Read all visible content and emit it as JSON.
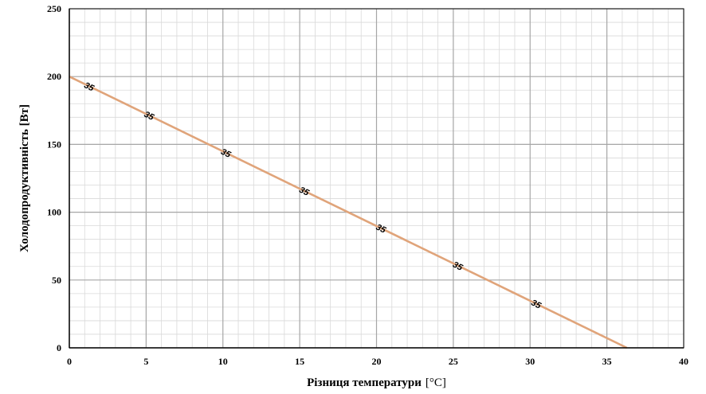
{
  "chart_data": {
    "type": "line",
    "title": "",
    "xlabel": "Різниця температури",
    "xunit": "[°C]",
    "ylabel": "Холодопродуктивність [Вт]",
    "xlim": [
      0,
      40
    ],
    "ylim": [
      0,
      250
    ],
    "x_ticks": [
      0,
      5,
      10,
      15,
      20,
      25,
      30,
      35,
      40
    ],
    "y_ticks": [
      0,
      50,
      100,
      150,
      200,
      250
    ],
    "grid": true,
    "series": [
      {
        "name": "",
        "x": [
          0,
          36.3
        ],
        "values": [
          200,
          0
        ],
        "color": "#e0a47a",
        "point_labels": [
          {
            "x": 1.3,
            "y": 192.8,
            "text": "35"
          },
          {
            "x": 5.2,
            "y": 171.4,
            "text": "35"
          },
          {
            "x": 10.2,
            "y": 143.8,
            "text": "35"
          },
          {
            "x": 15.3,
            "y": 115.7,
            "text": "35"
          },
          {
            "x": 20.3,
            "y": 88.2,
            "text": "35"
          },
          {
            "x": 25.3,
            "y": 60.6,
            "text": "35"
          },
          {
            "x": 30.4,
            "y": 32.5,
            "text": "35"
          }
        ]
      }
    ]
  }
}
